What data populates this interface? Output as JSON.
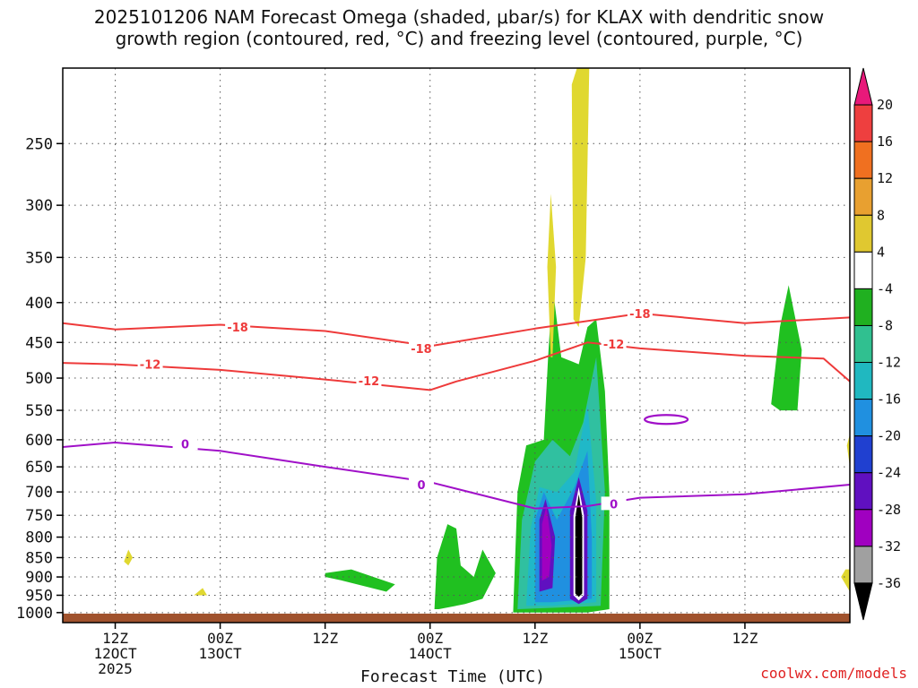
{
  "title_line1": "2025101206 NAM Forecast Omega (shaded, μbar/s) for KLAX with dendritic snow",
  "title_line2": "growth region (contoured, red, °C) and freezing level (contoured, purple, °C)",
  "credit": "coolwx.com/models",
  "chart_data": {
    "type": "heatmap",
    "xlabel": "Forecast Time (UTC)",
    "ylabel": "",
    "y_scale": "log-pressure",
    "y_inverted": true,
    "ylim_hPa": [
      1030,
      200
    ],
    "y_ticks": [
      250,
      300,
      350,
      400,
      450,
      500,
      550,
      600,
      650,
      700,
      750,
      800,
      850,
      900,
      950,
      1000
    ],
    "xlim": [
      "2025-10-12T06:00Z",
      "2025-10-16T00:00Z"
    ],
    "x_ticks": [
      {
        "value": "2025-10-12T12:00Z",
        "labels": [
          "12Z",
          "12OCT",
          "2025"
        ]
      },
      {
        "value": "2025-10-13T00:00Z",
        "labels": [
          "00Z",
          "13OCT"
        ]
      },
      {
        "value": "2025-10-13T12:00Z",
        "labels": [
          "12Z"
        ]
      },
      {
        "value": "2025-10-14T00:00Z",
        "labels": [
          "00Z",
          "14OCT"
        ]
      },
      {
        "value": "2025-10-14T12:00Z",
        "labels": [
          "12Z"
        ]
      },
      {
        "value": "2025-10-15T00:00Z",
        "labels": [
          "00Z",
          "15OCT"
        ]
      },
      {
        "value": "2025-10-15T12:00Z",
        "labels": [
          "12Z"
        ]
      }
    ],
    "grid": true,
    "colorbar": {
      "position": "right",
      "units": "μbar/s",
      "levels": [
        20,
        16,
        12,
        8,
        4,
        -4,
        -8,
        -12,
        -16,
        -20,
        -24,
        -28,
        -32,
        -36
      ],
      "colors_top_to_bottom": [
        "#e8197a",
        "#ee3f3f",
        "#f07020",
        "#e8a030",
        "#e0c830",
        "#ffffff",
        "#20b020",
        "#30c090",
        "#20b8c0",
        "#2090e0",
        "#2040d0",
        "#6010c0",
        "#a000c0",
        "#a0a0a0",
        "#000000"
      ]
    },
    "omega_regions": [
      {
        "level": "-8 to -4",
        "color": "#20c020",
        "note": "broad ascent region 14OCT 12Z to 15OCT 00Z, 1000-420 hPa"
      },
      {
        "level": "below -36",
        "color": "#000000",
        "note": "strongest ascent core near 14OCT 18Z, 1000-730 hPa"
      },
      {
        "level": "4 to 8",
        "color": "#e0d830",
        "note": "subsidence columns near 14OCT 14Z-18Z, 470-200 hPa"
      }
    ],
    "series": [
      {
        "name": "-18",
        "color": "#ee3a3a",
        "kind": "red contour",
        "x": [
          "2025-10-12T06:00Z",
          "2025-10-12T12:00Z",
          "2025-10-13T00:00Z",
          "2025-10-13T12:00Z",
          "2025-10-14T00:00Z",
          "2025-10-14T12:00Z",
          "2025-10-15T00:00Z",
          "2025-10-15T12:00Z",
          "2025-10-16T00:00Z"
        ],
        "y": [
          425,
          433,
          427,
          435,
          455,
          432,
          413,
          425,
          418
        ]
      },
      {
        "name": "-12",
        "color": "#ee3a3a",
        "kind": "red contour",
        "x": [
          "2025-10-12T06:00Z",
          "2025-10-12T12:00Z",
          "2025-10-13T00:00Z",
          "2025-10-13T12:00Z",
          "2025-10-14T00:00Z",
          "2025-10-14T03:00Z",
          "2025-10-14T12:00Z",
          "2025-10-14T18:00Z",
          "2025-10-15T00:00Z",
          "2025-10-15T12:00Z",
          "2025-10-15T21:00Z",
          "2025-10-16T00:00Z"
        ],
        "y": [
          478,
          480,
          488,
          502,
          518,
          505,
          475,
          450,
          458,
          468,
          472,
          505
        ]
      },
      {
        "name": "0",
        "color": "#a010c8",
        "kind": "purple contour",
        "x": [
          "2025-10-12T06:00Z",
          "2025-10-12T12:00Z",
          "2025-10-13T00:00Z",
          "2025-10-13T12:00Z",
          "2025-10-14T00:00Z",
          "2025-10-14T12:00Z",
          "2025-10-14T18:00Z",
          "2025-10-15T00:00Z",
          "2025-10-15T12:00Z",
          "2025-10-16T00:00Z"
        ],
        "y": [
          613,
          605,
          620,
          650,
          680,
          735,
          730,
          712,
          705,
          685
        ]
      }
    ],
    "contour_labels": [
      {
        "text": "-18",
        "x": "2025-10-13T02:00Z",
        "y": 430
      },
      {
        "text": "-18",
        "x": "2025-10-13T23:00Z",
        "y": 458
      },
      {
        "text": "-18",
        "x": "2025-10-15T00:00Z",
        "y": 413
      },
      {
        "text": "-12",
        "x": "2025-10-12T16:00Z",
        "y": 480
      },
      {
        "text": "-12",
        "x": "2025-10-13T17:00Z",
        "y": 504
      },
      {
        "text": "-12",
        "x": "2025-10-14T21:00Z",
        "y": 452
      },
      {
        "text": "0",
        "x": "2025-10-12T20:00Z",
        "y": 607
      },
      {
        "text": "0",
        "x": "2025-10-13T23:00Z",
        "y": 685
      },
      {
        "text": "0",
        "x": "2025-10-14T21:00Z",
        "y": 725
      }
    ]
  }
}
